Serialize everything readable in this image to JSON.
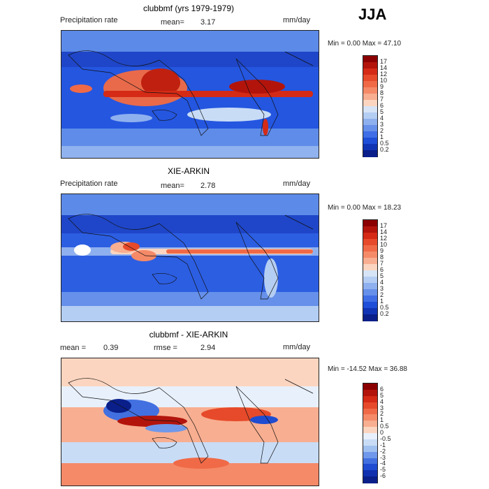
{
  "season": "JJA",
  "panels": [
    {
      "title": "clubbmf (yrs 1979-1979)",
      "left_text": "Precipitation rate",
      "mean_label": "mean=",
      "mean_value": "3.17",
      "rmse_label": "",
      "rmse_value": "",
      "units": "mm/day",
      "minmax": "Min =    0.00 Max =   47.10",
      "colorbar_labels": [
        "17",
        "14",
        "12",
        "10",
        "9",
        "8",
        "7",
        "6",
        "5",
        "4",
        "3",
        "2",
        "1",
        "0.5",
        "0.2"
      ],
      "colorbar_colors": [
        "#8b0000",
        "#b2140c",
        "#d42a16",
        "#e64a2a",
        "#f06a47",
        "#f58a68",
        "#f8ae90",
        "#fbd5c0",
        "#d6e4f6",
        "#b4cdf2",
        "#8fb0ee",
        "#6690ea",
        "#3f6ee6",
        "#1f4fd8",
        "#1034b4",
        "#0a1f8a"
      ]
    },
    {
      "title": "XIE-ARKIN",
      "left_text": "Precipitation rate",
      "mean_label": "mean=",
      "mean_value": "2.78",
      "rmse_label": "",
      "rmse_value": "",
      "units": "mm/day",
      "minmax": "Min =    0.00 Max =   18.23",
      "colorbar_labels": [
        "17",
        "14",
        "12",
        "10",
        "9",
        "8",
        "7",
        "6",
        "5",
        "4",
        "3",
        "2",
        "1",
        "0.5",
        "0.2"
      ],
      "colorbar_colors": [
        "#8b0000",
        "#b2140c",
        "#d42a16",
        "#e64a2a",
        "#f06a47",
        "#f58a68",
        "#f8ae90",
        "#fbd5c0",
        "#d6e4f6",
        "#b4cdf2",
        "#8fb0ee",
        "#6690ea",
        "#3f6ee6",
        "#1f4fd8",
        "#1034b4",
        "#0a1f8a"
      ]
    },
    {
      "title": "clubbmf - XIE-ARKIN",
      "left_text": "",
      "mean_label": "mean =",
      "mean_value": "0.39",
      "rmse_label": "rmse =",
      "rmse_value": "2.94",
      "units": "mm/day",
      "minmax": "Min = -14.52 Max =   36.88",
      "colorbar_labels": [
        "6",
        "5",
        "4",
        "3",
        "2",
        "1",
        "0.5",
        "0",
        "-0.5",
        "-1",
        "-2",
        "-3",
        "-4",
        "-5",
        "-6"
      ],
      "colorbar_colors": [
        "#8b0000",
        "#b2140c",
        "#d42a16",
        "#e64a2a",
        "#f06a47",
        "#f58a68",
        "#f8ae90",
        "#fbd5c0",
        "#e8f0fb",
        "#c8dcf6",
        "#a0c0f0",
        "#6f98ea",
        "#4270e0",
        "#1f4cd0",
        "#1030b0",
        "#0a1f8a"
      ]
    }
  ]
}
